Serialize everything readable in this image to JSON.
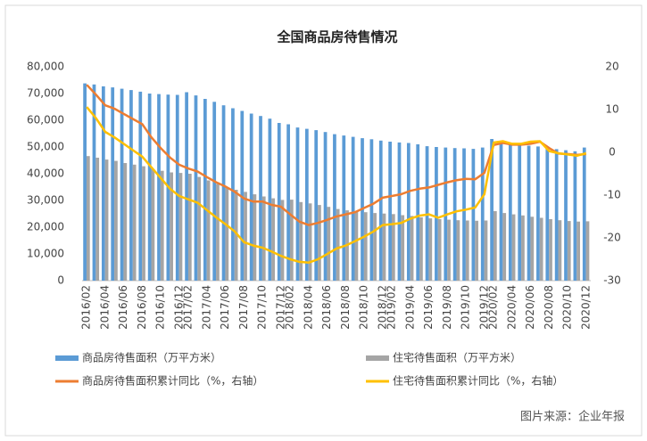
{
  "chart_data": {
    "type": "bar",
    "title": "全国商品房待售情况",
    "source": "图片来源：企业年报",
    "categories": [
      "2016/02",
      null,
      "2016/04",
      null,
      "2016/06",
      null,
      "2016/08",
      null,
      "2016/10",
      null,
      "2016/12",
      "2017/02",
      null,
      "2017/04",
      null,
      "2017/06",
      null,
      "2017/08",
      null,
      "2017/10",
      null,
      "2017/12",
      "2018/02",
      null,
      "2018/04",
      null,
      "2018/06",
      null,
      "2018/08",
      null,
      "2018/10",
      null,
      "2018/12",
      "2019/02",
      null,
      "2019/04",
      null,
      "2019/06",
      null,
      "2019/08",
      null,
      "2019/10",
      null,
      "2019/12",
      "2020/02",
      null,
      "2020/04",
      null,
      "2020/06",
      null,
      "2020/08",
      null,
      "2020/10",
      null,
      "2020/12"
    ],
    "series": [
      {
        "name": "商品房待售面积（万平方米）",
        "type": "bar",
        "color": "#5b9bd5",
        "values": [
          73800,
          73400,
          72700,
          72300,
          71800,
          71300,
          70700,
          70000,
          69800,
          69600,
          69500,
          70500,
          69300,
          68000,
          66900,
          65600,
          64500,
          63500,
          62500,
          61600,
          60600,
          59000,
          58500,
          57300,
          56800,
          56300,
          55600,
          54800,
          54300,
          53800,
          53300,
          52900,
          52400,
          52000,
          51700,
          51500,
          51000,
          50300,
          50000,
          49800,
          49600,
          49500,
          49300,
          49800,
          53000,
          52200,
          51400,
          51000,
          50500,
          50200,
          49400,
          49200,
          48800,
          48400,
          49800
        ]
      },
      {
        "name": "住宅待售面积（万平方米）",
        "type": "bar",
        "color": "#a5a5a5",
        "values": [
          46600,
          46000,
          45300,
          44800,
          44000,
          43400,
          42800,
          41700,
          41100,
          40500,
          40300,
          40000,
          38800,
          37500,
          36200,
          35000,
          34000,
          33200,
          32300,
          31500,
          30800,
          30200,
          30300,
          29400,
          28900,
          28300,
          27600,
          26800,
          26300,
          26000,
          25600,
          25300,
          25100,
          24900,
          24500,
          24200,
          23700,
          23300,
          23000,
          22800,
          22600,
          22500,
          22400,
          22500,
          26000,
          25300,
          24800,
          24400,
          23900,
          23500,
          23000,
          22600,
          22300,
          22100,
          22200
        ]
      },
      {
        "name": "商品房待售面积累计同比（%，右轴）",
        "type": "line",
        "axis": "y2",
        "color": "#ed7d31",
        "values": [
          15.8,
          13.5,
          11.0,
          10.2,
          9.0,
          7.8,
          6.6,
          3.5,
          1.0,
          -1.2,
          -2.9,
          -3.8,
          -4.5,
          -5.8,
          -7.0,
          -8.0,
          -9.2,
          -10.8,
          -11.5,
          -11.5,
          -12.3,
          -12.7,
          -14.5,
          -16.2,
          -17.0,
          -16.5,
          -15.8,
          -15.0,
          -14.5,
          -14.0,
          -13.0,
          -12.0,
          -10.6,
          -10.2,
          -9.8,
          -9.0,
          -8.5,
          -8.2,
          -7.6,
          -7.0,
          -6.5,
          -6.2,
          -6.3,
          -4.8,
          1.7,
          2.2,
          1.8,
          1.8,
          2.0,
          2.5,
          1.0,
          -0.3,
          -0.4,
          -0.6,
          -0.4
        ]
      },
      {
        "name": "住宅待售面积累计同比（%，右轴）",
        "type": "line",
        "axis": "y2",
        "color": "#ffc000",
        "values": [
          10.6,
          8.0,
          4.8,
          3.5,
          2.0,
          0.5,
          -1.0,
          -3.5,
          -6.0,
          -8.5,
          -10.2,
          -11.0,
          -11.8,
          -13.5,
          -15.2,
          -16.8,
          -18.5,
          -21.0,
          -21.8,
          -22.3,
          -23.2,
          -24.2,
          -25.0,
          -25.6,
          -25.8,
          -25.0,
          -23.8,
          -22.5,
          -21.8,
          -20.8,
          -19.7,
          -18.5,
          -17.0,
          -16.8,
          -16.5,
          -15.5,
          -14.8,
          -14.5,
          -15.3,
          -14.5,
          -13.8,
          -13.4,
          -12.9,
          -9.8,
          2.3,
          2.6,
          2.0,
          2.0,
          2.5,
          2.6,
          0.3,
          -0.2,
          -0.5,
          -0.8,
          -0.2
        ]
      }
    ],
    "ylim": [
      0,
      80000
    ],
    "yticks": [
      0,
      {
        "value": 10000,
        "label": "10,000"
      },
      {
        "value": 20000,
        "label": "20,000"
      },
      {
        "value": 30000,
        "label": "30,000"
      },
      {
        "value": 40000,
        "label": "40,000"
      },
      {
        "value": 50000,
        "label": "50,000"
      },
      {
        "value": 60000,
        "label": "60,000"
      },
      {
        "value": 70000,
        "label": "70,000"
      },
      {
        "value": 80000,
        "label": "80,000"
      }
    ],
    "y2lim": [
      -30,
      20
    ],
    "y2ticks": [
      -30,
      -20,
      -10,
      0,
      10,
      20
    ],
    "grid": false
  }
}
